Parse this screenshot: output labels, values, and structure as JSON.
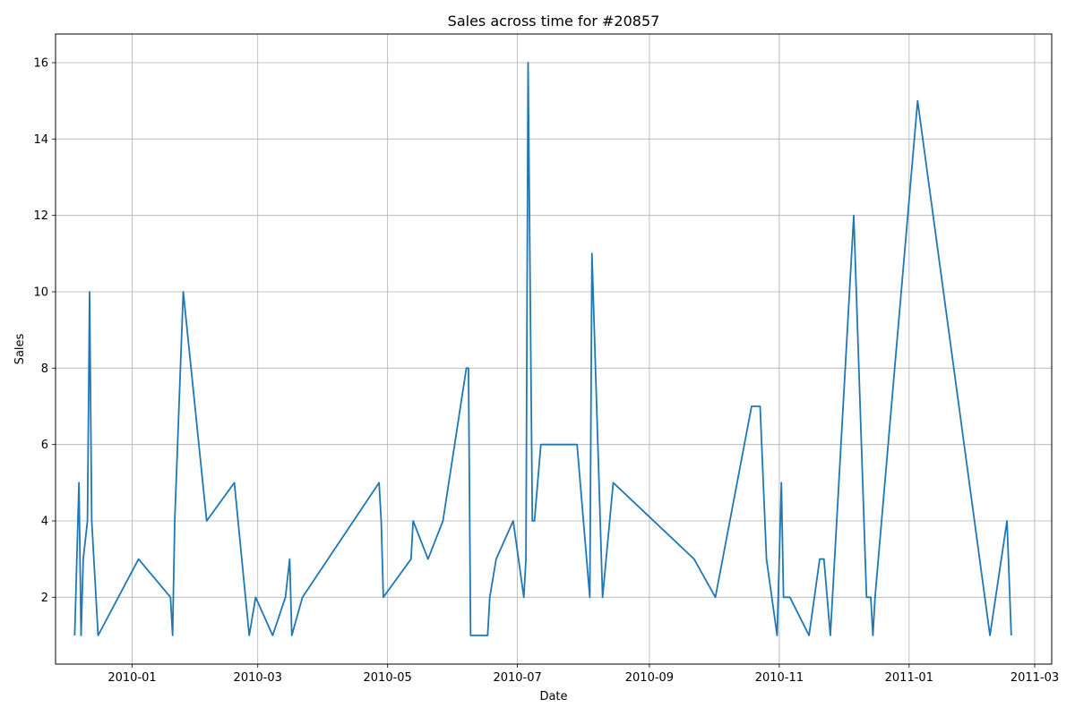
{
  "chart_data": {
    "type": "line",
    "title": "Sales across time for #20857",
    "xlabel": "Date",
    "ylabel": "Sales",
    "grid": true,
    "line_color": "#1f77b4",
    "xlim": [
      "2009-11-26",
      "2011-03-09"
    ],
    "ylim": [
      0.25,
      16.75
    ],
    "x_ticks": [
      "2010-01-01",
      "2010-03-01",
      "2010-05-01",
      "2010-07-01",
      "2010-09-01",
      "2010-11-01",
      "2011-01-01",
      "2011-03-01"
    ],
    "x_tick_labels": [
      "2010-01",
      "2010-03",
      "2010-05",
      "2010-07",
      "2010-09",
      "2010-11",
      "2011-01",
      "2011-03"
    ],
    "y_ticks": [
      2,
      4,
      6,
      8,
      10,
      12,
      14,
      16
    ],
    "series": [
      {
        "x": [
          "2009-12-05",
          "2009-12-07",
          "2009-12-08",
          "2009-12-09",
          "2009-12-11",
          "2009-12-12",
          "2009-12-13",
          "2009-12-16",
          "2010-01-04",
          "2010-01-19",
          "2010-01-20",
          "2010-01-21",
          "2010-01-25",
          "2010-02-05",
          "2010-02-18",
          "2010-02-25",
          "2010-02-28",
          "2010-03-08",
          "2010-03-14",
          "2010-03-16",
          "2010-03-17",
          "2010-03-22",
          "2010-04-27",
          "2010-04-28",
          "2010-04-29",
          "2010-05-12",
          "2010-05-13",
          "2010-05-20",
          "2010-05-27",
          "2010-06-07",
          "2010-06-08",
          "2010-06-09",
          "2010-06-17",
          "2010-06-18",
          "2010-06-21",
          "2010-06-29",
          "2010-07-04",
          "2010-07-05",
          "2010-07-06",
          "2010-07-08",
          "2010-07-09",
          "2010-07-12",
          "2010-07-29",
          "2010-08-04",
          "2010-08-05",
          "2010-08-10",
          "2010-08-15",
          "2010-09-22",
          "2010-10-02",
          "2010-10-19",
          "2010-10-23",
          "2010-10-26",
          "2010-10-31",
          "2010-11-02",
          "2010-11-03",
          "2010-11-06",
          "2010-11-15",
          "2010-11-20",
          "2010-11-22",
          "2010-11-25",
          "2010-12-06",
          "2010-12-12",
          "2010-12-14",
          "2010-12-15",
          "2010-12-16",
          "2011-01-05",
          "2011-02-08",
          "2011-02-16",
          "2011-02-18"
        ],
        "y": [
          1,
          5,
          1,
          3,
          4,
          10,
          4,
          1,
          3,
          2,
          1,
          4,
          10,
          4,
          5,
          1,
          2,
          1,
          2,
          3,
          1,
          2,
          5,
          4,
          2,
          3,
          4,
          3,
          4,
          8,
          8,
          1,
          1,
          2,
          3,
          4,
          2,
          3,
          16,
          4,
          4,
          6,
          6,
          2,
          11,
          2,
          5,
          3,
          2,
          7,
          7,
          3,
          1,
          5,
          2,
          2,
          1,
          3,
          3,
          1,
          12,
          2,
          2,
          1,
          2,
          15,
          1,
          4,
          1
        ]
      }
    ]
  }
}
